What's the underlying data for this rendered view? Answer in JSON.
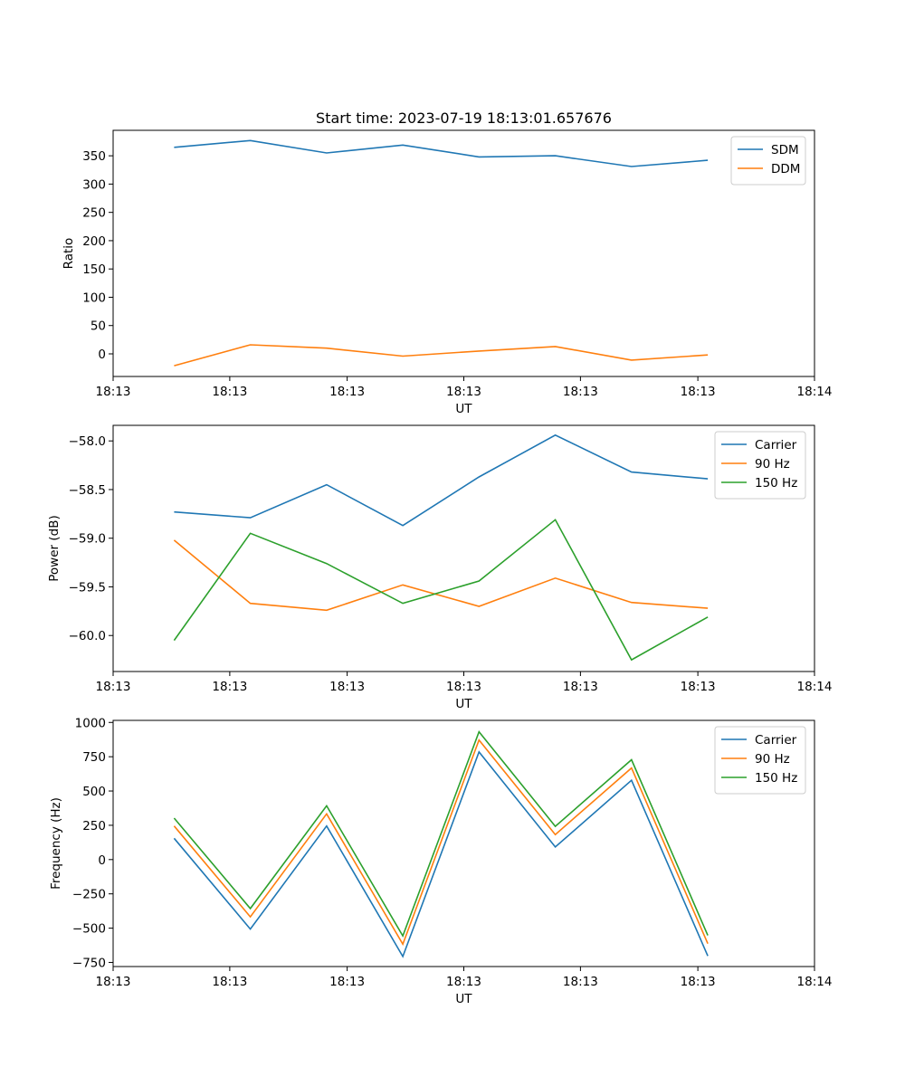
{
  "chart_data": [
    {
      "type": "line",
      "title": "Start time: 2023-07-19 18:13:01.657676",
      "xlabel": "UT",
      "ylabel": "Ratio",
      "x": [
        1,
        2,
        3,
        4,
        5,
        6,
        7,
        8
      ],
      "xlim": [
        0.2,
        9.4
      ],
      "xticks": [
        0.2,
        1.73,
        3.27,
        4.8,
        6.33,
        7.87,
        9.4
      ],
      "xtick_labels": [
        "18:13",
        "18:13",
        "18:13",
        "18:13",
        "18:13",
        "18:13",
        "18:14"
      ],
      "ylim": [
        -40,
        395
      ],
      "yticks": [
        0,
        50,
        100,
        150,
        200,
        250,
        300,
        350
      ],
      "legend": "top-right",
      "series": [
        {
          "name": "SDM",
          "color": "#1f77b4",
          "values": [
            365,
            377,
            355,
            369,
            348,
            350,
            331,
            342
          ]
        },
        {
          "name": "DDM",
          "color": "#ff7f0e",
          "values": [
            -21,
            16,
            10,
            -4,
            5,
            13,
            -11,
            -2
          ]
        }
      ]
    },
    {
      "type": "line",
      "title": "",
      "xlabel": "UT",
      "ylabel": "Power (dB)",
      "x": [
        1,
        2,
        3,
        4,
        5,
        6,
        7,
        8
      ],
      "xlim": [
        0.2,
        9.4
      ],
      "xticks": [
        0.2,
        1.73,
        3.27,
        4.8,
        6.33,
        7.87,
        9.4
      ],
      "xtick_labels": [
        "18:13",
        "18:13",
        "18:13",
        "18:13",
        "18:13",
        "18:13",
        "18:14"
      ],
      "ylim": [
        -60.37,
        -57.84
      ],
      "yticks": [
        -60.0,
        -59.5,
        -59.0,
        -58.5,
        -58.0
      ],
      "ytick_labels": [
        "−60.0",
        "−59.5",
        "−59.0",
        "−58.5",
        "−58.0"
      ],
      "legend": "top-right",
      "series": [
        {
          "name": "Carrier",
          "color": "#1f77b4",
          "values": [
            -58.73,
            -58.79,
            -58.45,
            -58.87,
            -58.37,
            -57.94,
            -58.32,
            -58.39
          ]
        },
        {
          "name": "90 Hz",
          "color": "#ff7f0e",
          "values": [
            -59.02,
            -59.67,
            -59.74,
            -59.48,
            -59.7,
            -59.41,
            -59.66,
            -59.72
          ]
        },
        {
          "name": "150 Hz",
          "color": "#2ca02c",
          "values": [
            -60.05,
            -58.95,
            -59.26,
            -59.67,
            -59.44,
            -58.81,
            -60.25,
            -59.81
          ]
        }
      ]
    },
    {
      "type": "line",
      "title": "",
      "xlabel": "UT",
      "ylabel": "Frequency (Hz)",
      "x": [
        1,
        2,
        3,
        4,
        5,
        6,
        7,
        8
      ],
      "xlim": [
        0.2,
        9.4
      ],
      "xticks": [
        0.2,
        1.73,
        3.27,
        4.8,
        6.33,
        7.87,
        9.4
      ],
      "xtick_labels": [
        "18:13",
        "18:13",
        "18:13",
        "18:13",
        "18:13",
        "18:13",
        "18:14"
      ],
      "ylim": [
        -780,
        1015
      ],
      "yticks": [
        -750,
        -500,
        -250,
        0,
        250,
        500,
        750,
        1000
      ],
      "ytick_labels": [
        "−750",
        "−500",
        "−250",
        "0",
        "250",
        "500",
        "750",
        "1000"
      ],
      "legend": "top-right",
      "series": [
        {
          "name": "Carrier",
          "color": "#1f77b4",
          "values": [
            155,
            -507,
            245,
            -707,
            785,
            92,
            578,
            -703
          ]
        },
        {
          "name": "90 Hz",
          "color": "#ff7f0e",
          "values": [
            245,
            -418,
            333,
            -617,
            872,
            182,
            668,
            -613
          ]
        },
        {
          "name": "150 Hz",
          "color": "#2ca02c",
          "values": [
            302,
            -357,
            392,
            -557,
            932,
            242,
            728,
            -553
          ]
        }
      ]
    }
  ]
}
